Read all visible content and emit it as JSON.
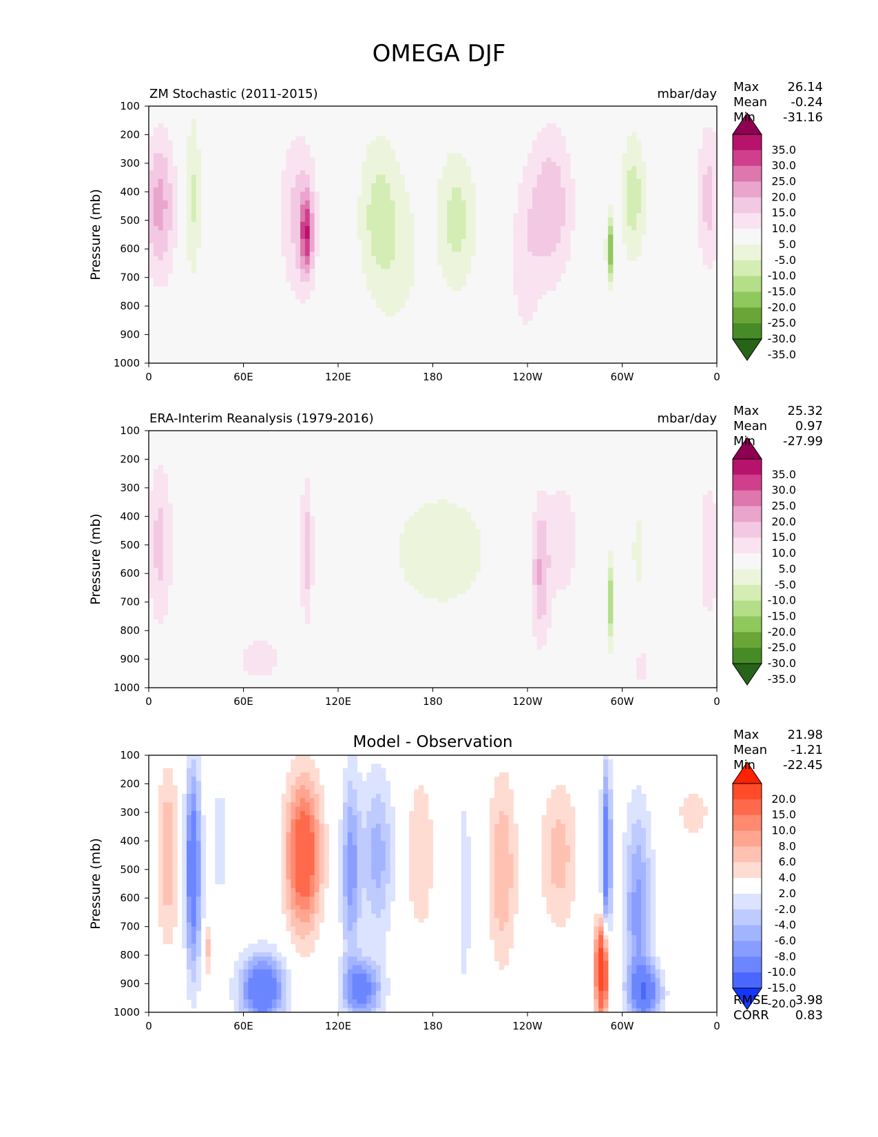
{
  "figure": {
    "title": "OMEGA DJF"
  },
  "chart_data": [
    {
      "type": "heatmap",
      "title": "ZM Stochastic (2011-2015)",
      "units": "mbar/day",
      "ylabel": "Pressure (mb)",
      "xlabel": "",
      "x_ticks": [
        "0",
        "60E",
        "120E",
        "180",
        "120W",
        "60W",
        "0"
      ],
      "y_ticks": [
        "100",
        "200",
        "300",
        "400",
        "500",
        "600",
        "700",
        "800",
        "900",
        "1000"
      ],
      "xlim": [
        0,
        360
      ],
      "ylim": [
        1000,
        100
      ],
      "stats": {
        "max_label": "Max",
        "max": "26.14",
        "mean_label": "Mean",
        "mean": "-0.24",
        "min_label": "Min",
        "min": "-31.16"
      },
      "colorbar": {
        "levels": [
          "35.0",
          "30.0",
          "25.0",
          "20.0",
          "15.0",
          "10.0",
          "5.0",
          "-5.0",
          "-10.0",
          "-15.0",
          "-20.0",
          "-25.0",
          "-30.0",
          "-35.0"
        ],
        "colors": [
          "#8e0152",
          "#b8136c",
          "#cf3f8c",
          "#de77ae",
          "#eaa5cd",
          "#f3c8e3",
          "#f9e3f0",
          "#f7f7f7",
          "#ecf5dc",
          "#d4edb4",
          "#b4de87",
          "#8fc85c",
          "#6aa637",
          "#478b26",
          "#276419"
        ],
        "extend": "both"
      },
      "field": [
        {
          "lon": 7,
          "p": 450,
          "v": 17,
          "dlon": 10,
          "dp": 260
        },
        {
          "lon": 28,
          "p": 420,
          "v": -11,
          "dlon": 5,
          "dp": 310
        },
        {
          "lon": 45,
          "p": 650,
          "v": -4,
          "dlon": 6,
          "dp": 220
        },
        {
          "lon": 95,
          "p": 480,
          "v": 12,
          "dlon": 12,
          "dp": 300
        },
        {
          "lon": 100,
          "p": 550,
          "v": 22,
          "dlon": 4,
          "dp": 140
        },
        {
          "lon": 145,
          "p": 480,
          "v": -11,
          "dlon": 13,
          "dp": 290
        },
        {
          "lon": 160,
          "p": 620,
          "v": -6,
          "dlon": 16,
          "dp": 330
        },
        {
          "lon": 195,
          "p": 500,
          "v": -12,
          "dlon": 13,
          "dp": 260
        },
        {
          "lon": 255,
          "p": 450,
          "v": 14,
          "dlon": 14,
          "dp": 280
        },
        {
          "lon": 238,
          "p": 650,
          "v": 7,
          "dlon": 10,
          "dp": 330
        },
        {
          "lon": 292,
          "p": 600,
          "v": -26,
          "dlon": 2,
          "dp": 120
        },
        {
          "lon": 307,
          "p": 420,
          "v": -13,
          "dlon": 8,
          "dp": 230
        },
        {
          "lon": 355,
          "p": 420,
          "v": 12,
          "dlon": 8,
          "dp": 270
        }
      ]
    },
    {
      "type": "heatmap",
      "title": "ERA-Interim Reanalysis (1979-2016)",
      "units": "mbar/day",
      "ylabel": "Pressure (mb)",
      "xlabel": "",
      "x_ticks": [
        "0",
        "60E",
        "120E",
        "180",
        "120W",
        "60W",
        "0"
      ],
      "y_ticks": [
        "100",
        "200",
        "300",
        "400",
        "500",
        "600",
        "700",
        "800",
        "900",
        "1000"
      ],
      "xlim": [
        0,
        360
      ],
      "ylim": [
        1000,
        100
      ],
      "stats": {
        "max_label": "Max",
        "max": "25.32",
        "mean_label": "Mean",
        "mean": "0.97",
        "min_label": "Min",
        "min": "-27.99"
      },
      "colorbar": {
        "levels": [
          "35.0",
          "30.0",
          "25.0",
          "20.0",
          "15.0",
          "10.0",
          "5.0",
          "-5.0",
          "-10.0",
          "-15.0",
          "-20.0",
          "-25.0",
          "-30.0",
          "-35.0"
        ],
        "colors": [
          "#8e0152",
          "#b8136c",
          "#cf3f8c",
          "#de77ae",
          "#eaa5cd",
          "#f3c8e3",
          "#f9e3f0",
          "#f7f7f7",
          "#ecf5dc",
          "#d4edb4",
          "#b4de87",
          "#8fc85c",
          "#6aa637",
          "#478b26",
          "#276419"
        ],
        "extend": "both"
      },
      "field": [
        {
          "lon": 7,
          "p": 500,
          "v": 12,
          "dlon": 8,
          "dp": 300
        },
        {
          "lon": 100,
          "p": 520,
          "v": 14,
          "dlon": 4,
          "dp": 250
        },
        {
          "lon": 70,
          "p": 900,
          "v": 8,
          "dlon": 16,
          "dp": 90
        },
        {
          "lon": 185,
          "p": 520,
          "v": -7,
          "dlon": 45,
          "dp": 300
        },
        {
          "lon": 248,
          "p": 600,
          "v": 15,
          "dlon": 6,
          "dp": 260
        },
        {
          "lon": 262,
          "p": 480,
          "v": 8,
          "dlon": 12,
          "dp": 270
        },
        {
          "lon": 292,
          "p": 700,
          "v": -20,
          "dlon": 2,
          "dp": 150
        },
        {
          "lon": 310,
          "p": 520,
          "v": -6,
          "dlon": 6,
          "dp": 250
        },
        {
          "lon": 312,
          "p": 930,
          "v": 12,
          "dlon": 3,
          "dp": 60
        },
        {
          "lon": 355,
          "p": 520,
          "v": 9,
          "dlon": 7,
          "dp": 280
        }
      ]
    },
    {
      "type": "heatmap",
      "title": "Model - Observation",
      "units": "",
      "ylabel": "Pressure (mb)",
      "xlabel": "",
      "x_ticks": [
        "0",
        "60E",
        "120E",
        "180",
        "120W",
        "60W",
        "0"
      ],
      "y_ticks": [
        "100",
        "200",
        "300",
        "400",
        "500",
        "600",
        "700",
        "800",
        "900",
        "1000"
      ],
      "xlim": [
        0,
        360
      ],
      "ylim": [
        1000,
        100
      ],
      "stats": {
        "max_label": "Max",
        "max": "21.98",
        "mean_label": "Mean",
        "mean": "-1.21",
        "min_label": "Min",
        "min": "-22.45",
        "rmse_label": "RMSE",
        "rmse": "3.98",
        "corr_label": "CORR",
        "corr": "0.83"
      },
      "colorbar": {
        "levels": [
          "20.0",
          "15.0",
          "10.0",
          "8.0",
          "6.0",
          "4.0",
          "2.0",
          "-2.0",
          "-4.0",
          "-6.0",
          "-8.0",
          "-10.0",
          "-15.0",
          "-20.0"
        ],
        "colors": [
          "#ff2200",
          "#ff4b2a",
          "#ff6a4d",
          "#ff8a70",
          "#ffa590",
          "#ffc2b2",
          "#ffdcd2",
          "#ffffff",
          "#dbe3ff",
          "#bfcbff",
          "#a3b4ff",
          "#889dff",
          "#6b86ff",
          "#4a68ff",
          "#1437ff"
        ],
        "extend": "both"
      },
      "field": [
        {
          "lon": 12,
          "p": 450,
          "v": 6,
          "dlon": 7,
          "dp": 300
        },
        {
          "lon": 28,
          "p": 500,
          "v": -14,
          "dlon": 5,
          "dp": 350
        },
        {
          "lon": 45,
          "p": 400,
          "v": -3,
          "dlon": 6,
          "dp": 250
        },
        {
          "lon": 38,
          "p": 780,
          "v": 5,
          "dlon": 2,
          "dp": 100
        },
        {
          "lon": 72,
          "p": 920,
          "v": -15,
          "dlon": 14,
          "dp": 120
        },
        {
          "lon": 98,
          "p": 450,
          "v": 14,
          "dlon": 11,
          "dp": 260
        },
        {
          "lon": 128,
          "p": 500,
          "v": -9,
          "dlon": 6,
          "dp": 330
        },
        {
          "lon": 145,
          "p": 450,
          "v": -7,
          "dlon": 10,
          "dp": 290
        },
        {
          "lon": 135,
          "p": 920,
          "v": -12,
          "dlon": 12,
          "dp": 100
        },
        {
          "lon": 172,
          "p": 450,
          "v": 4,
          "dlon": 9,
          "dp": 290
        },
        {
          "lon": 200,
          "p": 580,
          "v": -4,
          "dlon": 4,
          "dp": 350
        },
        {
          "lon": 224,
          "p": 500,
          "v": 6,
          "dlon": 9,
          "dp": 330
        },
        {
          "lon": 260,
          "p": 450,
          "v": 5,
          "dlon": 12,
          "dp": 260
        },
        {
          "lon": 287,
          "p": 850,
          "v": 20,
          "dlon": 4,
          "dp": 160
        },
        {
          "lon": 290,
          "p": 450,
          "v": -14,
          "dlon": 3,
          "dp": 300
        },
        {
          "lon": 310,
          "p": 650,
          "v": -9,
          "dlon": 9,
          "dp": 360
        },
        {
          "lon": 315,
          "p": 930,
          "v": -12,
          "dlon": 10,
          "dp": 90
        },
        {
          "lon": 345,
          "p": 300,
          "v": 3,
          "dlon": 12,
          "dp": 110
        }
      ]
    }
  ]
}
